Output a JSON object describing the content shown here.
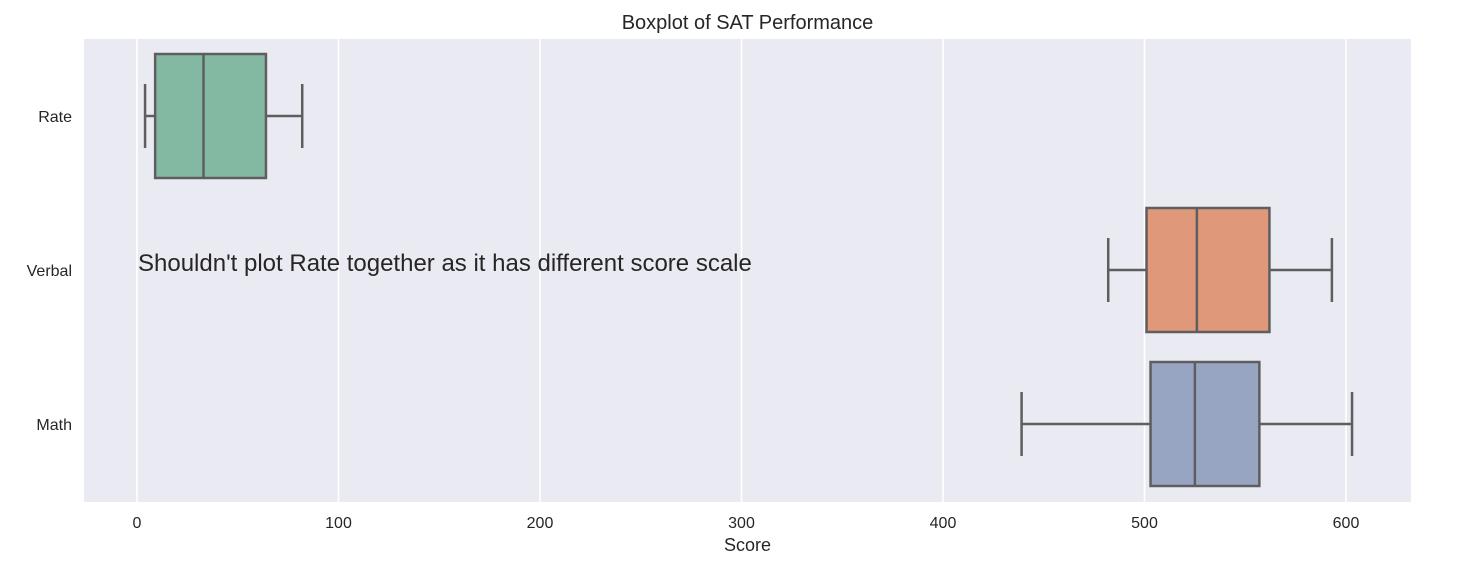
{
  "chart_data": {
    "type": "boxplot",
    "title": "Boxplot of SAT Performance",
    "xlabel": "Score",
    "ylabel": "",
    "xlim": [
      -26,
      634
    ],
    "xticks": [
      0,
      100,
      200,
      300,
      400,
      500,
      600
    ],
    "xtick_labels": [
      "0",
      "100",
      "200",
      "300",
      "400",
      "500",
      "600"
    ],
    "orientation": "horizontal",
    "grid": true,
    "background": "#EAEAF2",
    "annotation": "Shouldn't plot Rate together as it has different score scale",
    "categories": [
      "Rate",
      "Verbal",
      "Math"
    ],
    "series": [
      {
        "category": "Rate",
        "whisker_low": 4,
        "q1": 9,
        "median": 33,
        "q3": 64,
        "whisker_high": 82,
        "color": "#83B8A3"
      },
      {
        "category": "Verbal",
        "whisker_low": 482,
        "q1": 501,
        "median": 526,
        "q3": 562,
        "whisker_high": 593,
        "color": "#E0987A"
      },
      {
        "category": "Math",
        "whisker_low": 439,
        "q1": 503,
        "median": 525,
        "q3": 557,
        "whisker_high": 603,
        "color": "#97A4C2"
      }
    ],
    "line_color": "#5E5E5E"
  }
}
